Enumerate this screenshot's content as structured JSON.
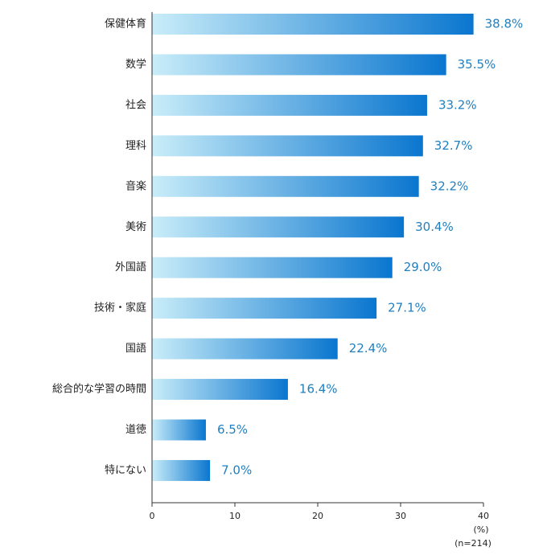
{
  "chart_data": {
    "type": "barh",
    "categories": [
      "保健体育",
      "数学",
      "社会",
      "理科",
      "音楽",
      "美術",
      "外国語",
      "技術・家庭",
      "国語",
      "総合的な学習の時間",
      "道徳",
      "特にない"
    ],
    "values": [
      38.8,
      35.5,
      33.2,
      32.7,
      32.2,
      30.4,
      29.0,
      27.1,
      22.4,
      16.4,
      6.5,
      7.0
    ],
    "value_labels": [
      "38.8%",
      "35.5%",
      "33.2%",
      "32.7%",
      "32.2%",
      "30.4%",
      "29.0%",
      "27.1%",
      "22.4%",
      "16.4%",
      "6.5%",
      "7.0%"
    ],
    "color": [
      "#c9edf9",
      "#0a76cf"
    ],
    "xlim": [
      0,
      40
    ],
    "xticks": [
      0,
      10,
      20,
      30,
      40
    ],
    "x_unit_label": "(%)",
    "note": "(n=214)"
  }
}
